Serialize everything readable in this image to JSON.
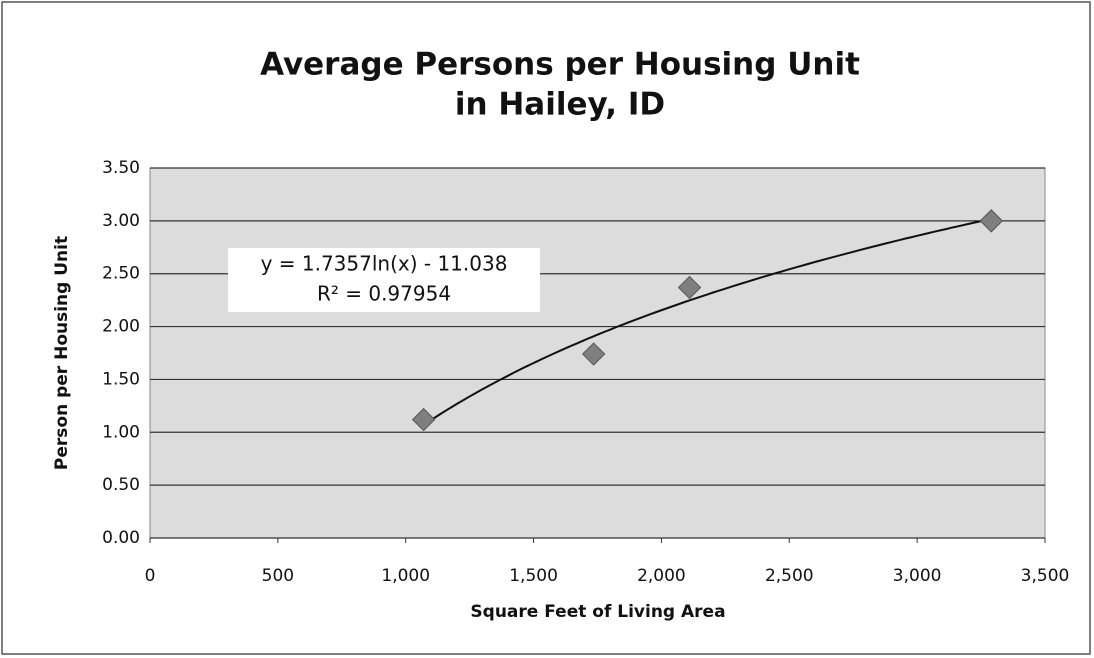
{
  "chart_data": {
    "type": "scatter",
    "title": "Average Persons per Housing Unit",
    "subtitle": "in Hailey, ID",
    "x_label": "Square Feet of Living Area",
    "y_label": "Person per Housing Unit",
    "x": [
      1070,
      1735,
      2110,
      3290
    ],
    "values": [
      1.12,
      1.74,
      2.37,
      3.0
    ],
    "color": "#7f7f7f",
    "xlim": [
      0,
      3500
    ],
    "xticks": [
      0,
      500,
      {
        "value": 1000,
        "label": "1,000"
      },
      {
        "value": 1500,
        "label": "1,500"
      },
      {
        "value": 2000,
        "label": "2,000"
      },
      {
        "value": 2500,
        "label": "2,500"
      },
      {
        "value": 3000,
        "label": "3,000"
      },
      {
        "value": 3500,
        "label": "3,500"
      }
    ],
    "ylim": [
      0,
      3.5
    ],
    "yticks": [
      {
        "value": 0,
        "label": "0.00"
      },
      {
        "value": 0.5,
        "label": "0.50"
      },
      {
        "value": 1,
        "label": "1.00"
      },
      {
        "value": 1.5,
        "label": "1.50"
      },
      {
        "value": 2,
        "label": "2.00"
      },
      {
        "value": 2.5,
        "label": "2.50"
      },
      {
        "value": 3,
        "label": "3.00"
      },
      {
        "value": 3.5,
        "label": "3.50"
      }
    ],
    "grid": true,
    "trendline": {
      "type": "log",
      "coefficients": [
        1.7357,
        -11.038
      ],
      "equation": "y = 1.7357ln(x) - 11.038",
      "r_squared": "R² = 0.97954"
    }
  }
}
